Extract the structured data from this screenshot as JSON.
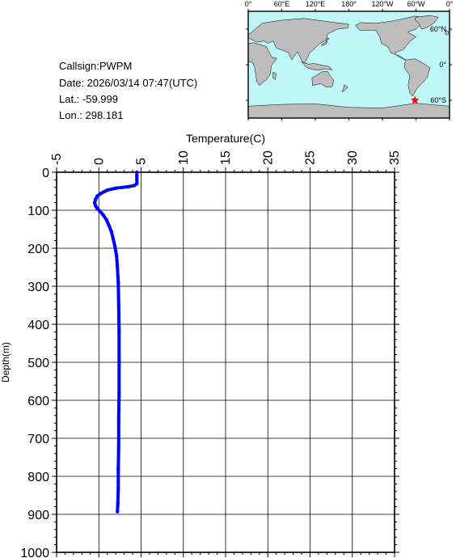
{
  "info": {
    "callsign": "Callsign:PWPM",
    "date": "Date:  2026/03/14 07:47(UTC)",
    "lat": "Lat.:  -59.999",
    "lon": "Lon.:  298.181"
  },
  "map": {
    "top_labels": [
      "0°",
      "60°E",
      "120°E",
      "180°",
      "120°W",
      "60°W",
      "0°"
    ],
    "right_labels": [
      "60°N",
      "0°",
      "60°S"
    ],
    "marker_lon": 298.181,
    "marker_lat": -59.999,
    "ocean_color": "#bff6f8",
    "land_color": "#bdbdbd",
    "marker_color": "#ff0000"
  },
  "chart_data": {
    "type": "line",
    "xlabel": "Temperature(C)",
    "ylabel": "Depth(m)",
    "xlim": [
      -5,
      35
    ],
    "ylim": [
      0,
      1000
    ],
    "y_inverted": true,
    "x_axis_position": "top",
    "grid": true,
    "x_ticks": [
      "-5",
      "0",
      "5",
      "10",
      "15",
      "20",
      "25",
      "30",
      "35"
    ],
    "y_ticks": [
      "0",
      "100",
      "200",
      "300",
      "400",
      "500",
      "600",
      "700",
      "800",
      "900",
      "1000"
    ],
    "series": [
      {
        "color": "#0000ff",
        "points": [
          [
            4.5,
            0
          ],
          [
            4.5,
            10
          ],
          [
            4.5,
            20
          ],
          [
            4.5,
            30
          ],
          [
            4.2,
            35
          ],
          [
            3.5,
            38
          ],
          [
            2.0,
            42
          ],
          [
            1.0,
            47
          ],
          [
            0.3,
            55
          ],
          [
            -0.2,
            63
          ],
          [
            -0.4,
            72
          ],
          [
            -0.5,
            80
          ],
          [
            -0.4,
            88
          ],
          [
            -0.2,
            95
          ],
          [
            0.1,
            102
          ],
          [
            0.5,
            112
          ],
          [
            0.9,
            125
          ],
          [
            1.2,
            140
          ],
          [
            1.5,
            157
          ],
          [
            1.7,
            175
          ],
          [
            1.9,
            195
          ],
          [
            2.1,
            220
          ],
          [
            2.2,
            250
          ],
          [
            2.3,
            290
          ],
          [
            2.35,
            350
          ],
          [
            2.4,
            420
          ],
          [
            2.4,
            500
          ],
          [
            2.4,
            580
          ],
          [
            2.35,
            650
          ],
          [
            2.35,
            720
          ],
          [
            2.3,
            780
          ],
          [
            2.3,
            830
          ],
          [
            2.25,
            870
          ],
          [
            2.2,
            893
          ]
        ]
      }
    ]
  }
}
